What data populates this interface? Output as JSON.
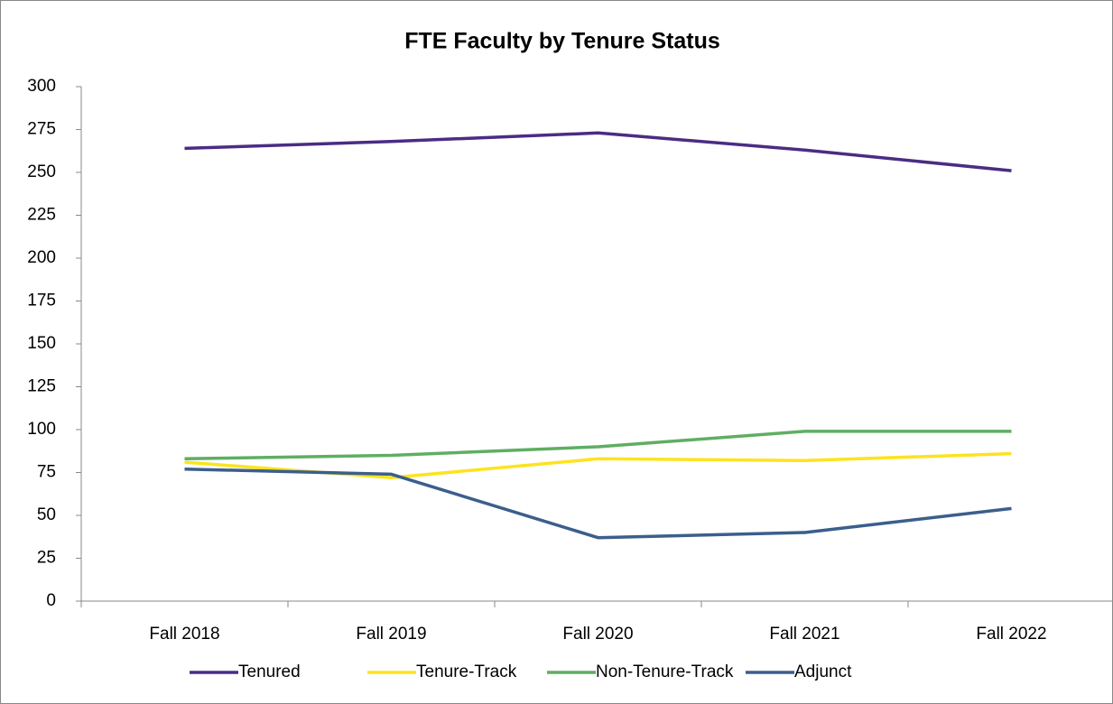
{
  "chart_data": {
    "type": "line",
    "title": "FTE Faculty by Tenure Status",
    "categories": [
      "Fall 2018",
      "Fall 2019",
      "Fall 2020",
      "Fall 2021",
      "Fall 2022"
    ],
    "series": [
      {
        "name": "Tenured",
        "color": "#4b2c83",
        "values": [
          264,
          268,
          273,
          263,
          251
        ]
      },
      {
        "name": "Tenure-Track",
        "color": "#fde31f",
        "values": [
          81,
          72,
          83,
          82,
          86
        ]
      },
      {
        "name": "Non-Tenure-Track",
        "color": "#5fae63",
        "values": [
          83,
          85,
          90,
          99,
          99
        ]
      },
      {
        "name": "Adjunct",
        "color": "#3b5e8c",
        "values": [
          77,
          74,
          37,
          40,
          54
        ]
      }
    ],
    "ylim": [
      0,
      300
    ],
    "yticks": [
      0,
      25,
      50,
      75,
      100,
      125,
      150,
      175,
      200,
      225,
      250,
      275,
      300
    ],
    "grid": false,
    "legend": "bottom"
  }
}
